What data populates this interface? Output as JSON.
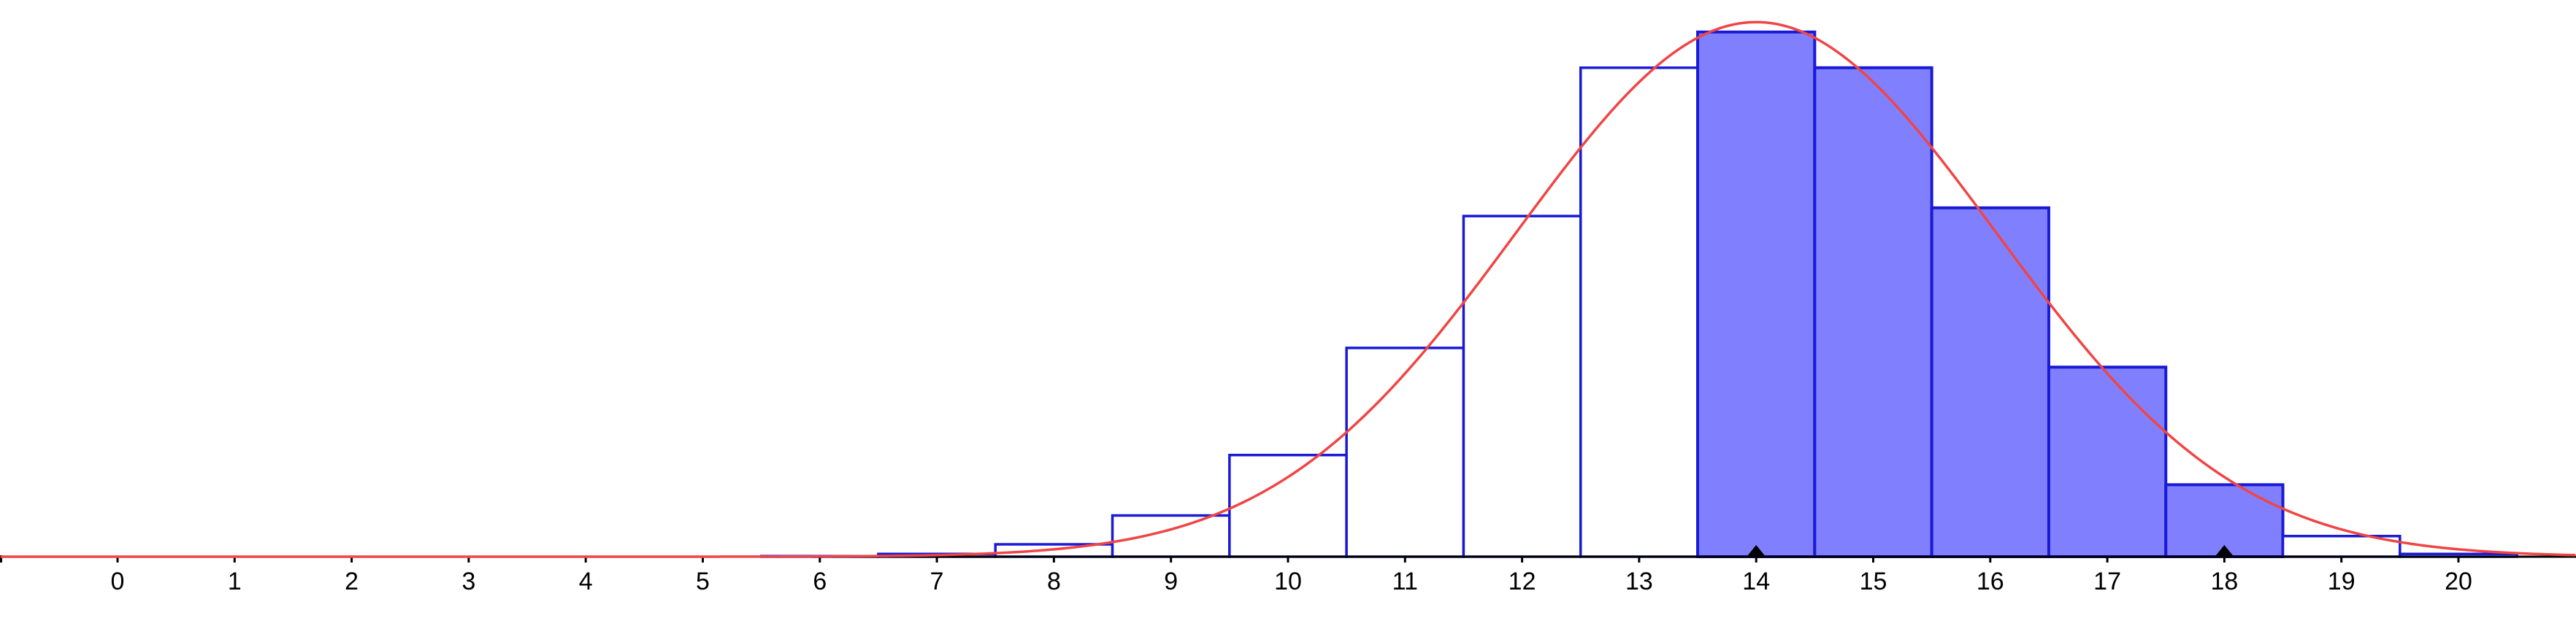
{
  "chart_data": {
    "type": "bar",
    "subtype": "binomial-histogram-with-normal-curve",
    "title": "",
    "xlabel": "",
    "ylabel": "",
    "grid": false,
    "legend": "none",
    "xlim": [
      -1,
      21
    ],
    "ylim": [
      0,
      0.2
    ],
    "x_ticks": [
      0,
      1,
      2,
      3,
      4,
      5,
      6,
      7,
      8,
      9,
      10,
      11,
      12,
      13,
      14,
      15,
      16,
      17,
      18,
      19,
      20
    ],
    "categories": [
      "0",
      "1",
      "2",
      "3",
      "4",
      "5",
      "6",
      "7",
      "8",
      "9",
      "10",
      "11",
      "12",
      "13",
      "14",
      "15",
      "16",
      "17",
      "18",
      "19",
      "20"
    ],
    "values": [
      0.0,
      0.0,
      0.0,
      0.0,
      0.0,
      0.0,
      0.0002,
      0.001,
      0.0045,
      0.015,
      0.037,
      0.076,
      0.124,
      0.178,
      0.191,
      0.178,
      0.127,
      0.069,
      0.0262,
      0.0075,
      0.001
    ],
    "highlighted_range": [
      14,
      18
    ],
    "markers": [
      14,
      18
    ],
    "curve": {
      "type": "normal",
      "mean": 14,
      "sd": 2.05
    },
    "colors": {
      "bar_stroke": "#1a1ad6",
      "bar_fill_highlight": "#8080ff",
      "bar_fill_normal": "#ffffff",
      "curve": "#f04545",
      "axis": "#000000",
      "marker": "#000000"
    }
  }
}
